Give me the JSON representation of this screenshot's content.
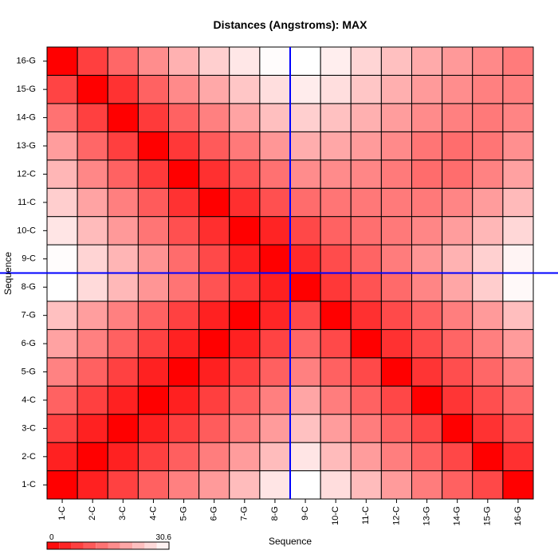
{
  "chart_data": {
    "type": "heatmap",
    "title": "Distances (Angstroms):  MAX",
    "xlabel": "Sequence",
    "ylabel": "Sequence",
    "labels": [
      "1-C",
      "2-C",
      "3-C",
      "4-C",
      "5-G",
      "6-G",
      "7-G",
      "8-G",
      "9-C",
      "10-C",
      "11-C",
      "12-C",
      "13-G",
      "14-G",
      "15-G",
      "16-G"
    ],
    "color_range": [
      0,
      30.6
    ],
    "colorbar_min_label": "0",
    "colorbar_max_label": "30.6",
    "low_color": "#ff0000",
    "high_color": "#ffffff",
    "divider_color": "#0000ff",
    "divider_between": [
      "8-G",
      "9-C"
    ],
    "values": [
      [
        0.0,
        3.9,
        7.8,
        11.6,
        15.3,
        18.5,
        22.6,
        27.5,
        30.6,
        26.5,
        22.6,
        18.6,
        14.9,
        11.6,
        8.6,
        0.0
      ],
      [
        4.0,
        0.0,
        3.9,
        7.7,
        11.4,
        15.0,
        18.7,
        22.6,
        27.5,
        22.5,
        18.7,
        15.1,
        11.7,
        8.5,
        0.0,
        5.8
      ],
      [
        7.9,
        4.0,
        0.0,
        3.8,
        7.6,
        11.0,
        14.6,
        18.6,
        23.2,
        18.7,
        15.0,
        11.7,
        8.5,
        0.0,
        6.0,
        9.5
      ],
      [
        11.8,
        7.7,
        3.9,
        0.0,
        3.8,
        7.5,
        11.3,
        15.2,
        19.8,
        15.0,
        11.7,
        8.5,
        0.0,
        6.3,
        9.5,
        12.5
      ],
      [
        15.6,
        11.6,
        7.8,
        3.9,
        0.0,
        3.8,
        7.6,
        11.5,
        15.3,
        11.6,
        8.8,
        0.0,
        6.2,
        9.3,
        12.3,
        15.5
      ],
      [
        19.4,
        15.3,
        11.6,
        7.9,
        4.1,
        0.0,
        3.9,
        8.0,
        12.2,
        8.7,
        0.0,
        5.9,
        9.0,
        12.1,
        15.2,
        18.6
      ],
      [
        23.0,
        19.0,
        15.4,
        11.7,
        7.8,
        4.0,
        0.0,
        4.6,
        8.8,
        0.0,
        5.8,
        8.9,
        11.6,
        15.1,
        18.5,
        22.8
      ],
      [
        30.6,
        26.1,
        22.1,
        17.9,
        13.9,
        10.0,
        6.7,
        3.8,
        0.0,
        6.7,
        10.0,
        12.7,
        15.9,
        19.9,
        24.6,
        29.9
      ],
      [
        30.3,
        25.5,
        21.7,
        17.7,
        12.9,
        8.8,
        4.0,
        0.0,
        5.0,
        9.1,
        12.0,
        14.9,
        17.9,
        21.4,
        25.0,
        29.3
      ],
      [
        27.5,
        22.5,
        18.4,
        14.0,
        9.6,
        5.6,
        0.0,
        4.3,
        8.6,
        11.7,
        13.3,
        14.5,
        16.1,
        18.8,
        22.0,
        25.8
      ],
      [
        24.7,
        19.6,
        15.2,
        10.9,
        6.0,
        0.0,
        5.6,
        9.6,
        12.9,
        14.0,
        14.4,
        14.6,
        14.5,
        15.9,
        18.7,
        22.3
      ],
      [
        21.9,
        16.2,
        11.7,
        7.0,
        0.0,
        5.7,
        9.9,
        13.5,
        16.8,
        16.7,
        16.1,
        14.7,
        12.9,
        13.1,
        15.6,
        19.3
      ],
      [
        18.8,
        12.4,
        7.6,
        0.0,
        6.7,
        10.8,
        14.5,
        18.0,
        20.8,
        20.0,
        18.6,
        16.6,
        14.0,
        13.1,
        14.0,
        17.2
      ],
      [
        13.7,
        7.7,
        0.0,
        6.9,
        11.7,
        15.3,
        19.5,
        22.9,
        24.9,
        23.2,
        21.1,
        18.8,
        16.7,
        15.4,
        14.5,
        15.8
      ],
      [
        8.2,
        0.0,
        6.0,
        11.8,
        16.5,
        20.2,
        23.8,
        26.7,
        28.3,
        26.7,
        23.8,
        21.0,
        18.5,
        16.9,
        15.3,
        15.2
      ],
      [
        0.0,
        7.5,
        12.4,
        16.9,
        21.2,
        24.8,
        27.7,
        30.3,
        30.6,
        28.6,
        25.6,
        23.0,
        20.4,
        18.3,
        16.4,
        14.8
      ]
    ]
  }
}
